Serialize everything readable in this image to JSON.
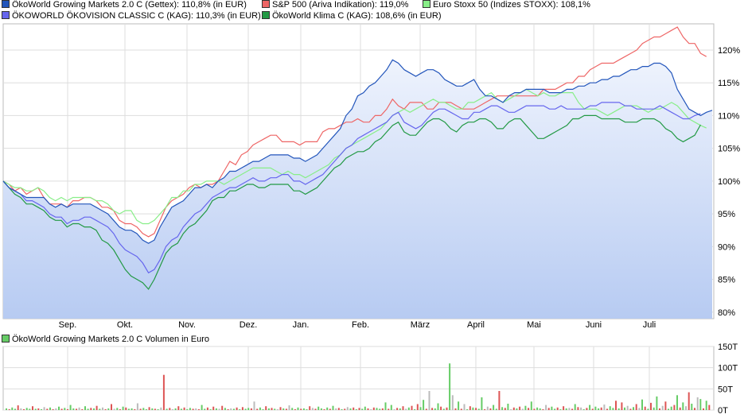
{
  "legend": [
    {
      "label": "ÖkoWorld Growing Markets 2.0 C (Gettex): 110,8% (in EUR)",
      "color": "#2255bb"
    },
    {
      "label": "S&P 500 (Ariva Indikation): 119,0%",
      "color": "#ee6666"
    },
    {
      "label": "Euro Stoxx 50 (Indizes STOXX): 108,1%",
      "color": "#88ee88"
    },
    {
      "label": "ÖKOWORLD ÖKOVISION CLASSIC C (KAG): 110,3% (in EUR)",
      "color": "#6666ee"
    },
    {
      "label": "ÖkoWorld Klima C (KAG): 108,6% (in EUR)",
      "color": "#229944"
    }
  ],
  "volume_legend": {
    "label": "ÖkoWorld Growing Markets 2.0 C Volumen in Euro",
    "color": "#66cc66"
  },
  "chart_data": [
    {
      "type": "line",
      "x_ticks": [
        "Sep.",
        "Okt.",
        "Nov.",
        "Dez.",
        "Jan.",
        "Feb.",
        "März",
        "April",
        "Mai",
        "Juni",
        "Juli"
      ],
      "y_ticks": [
        "80%",
        "85%",
        "90%",
        "95%",
        "100%",
        "105%",
        "110%",
        "115%",
        "120%"
      ],
      "ylim": [
        79,
        124
      ],
      "grid": true,
      "series": [
        {
          "name": "S&P 500 (Ariva Indikation)",
          "color": "#ee6666",
          "values": [
            100,
            99.5,
            98.5,
            99,
            98,
            98.5,
            99,
            97.5,
            96.5,
            96.5,
            96.5,
            96,
            97,
            97,
            97.5,
            97.5,
            97,
            96,
            96,
            95.5,
            94,
            93.5,
            93.5,
            93,
            92,
            91.5,
            92,
            94,
            96,
            97,
            97.5,
            98,
            99,
            99.5,
            99,
            99.5,
            99.5,
            100,
            101.5,
            103,
            102.5,
            104,
            104.5,
            105.5,
            106,
            106.5,
            107,
            107,
            106,
            106,
            106,
            105.5,
            106,
            106,
            106,
            107.5,
            108,
            108,
            108.5,
            109,
            109,
            109.5,
            109,
            109,
            110,
            110,
            111,
            112.5,
            111.5,
            111,
            112,
            112,
            112,
            111,
            111,
            112,
            112,
            112,
            111.5,
            111,
            111,
            111,
            111.5,
            112,
            112.5,
            113,
            113,
            113,
            113,
            113,
            113,
            113,
            113,
            114,
            114,
            114,
            114.5,
            115,
            115,
            116,
            116,
            117,
            117.5,
            118,
            118,
            118,
            118.5,
            119,
            119.5,
            120,
            121,
            121.5,
            122,
            122,
            122.5,
            123,
            123.5,
            122,
            121,
            121,
            119.5,
            119
          ]
        },
        {
          "name": "Euro Stoxx 50 (Indizes STOXX)",
          "color": "#88ee88",
          "values": [
            100,
            99.5,
            99,
            99,
            98.5,
            98.5,
            99,
            98.5,
            97.5,
            97,
            97.5,
            97,
            97.5,
            97.5,
            97.5,
            97.5,
            97,
            97,
            96.5,
            95.5,
            95,
            95.5,
            95.5,
            94,
            93.5,
            93.5,
            94,
            95,
            96,
            97.5,
            97.5,
            98.5,
            98.5,
            99.5,
            99.5,
            100,
            100,
            100,
            99.5,
            100,
            100.5,
            101,
            101.5,
            102,
            102,
            102,
            102,
            101.5,
            101,
            101.5,
            101,
            101,
            100.5,
            101,
            101.5,
            102,
            102.5,
            103.5,
            104,
            105,
            105.5,
            106,
            106.5,
            107,
            107.5,
            108,
            109,
            110,
            110.5,
            111,
            110.5,
            111,
            111.5,
            112,
            112.5,
            112,
            112,
            111.5,
            111,
            111,
            112,
            112,
            112.5,
            113,
            113.5,
            112.5,
            112,
            112.5,
            113,
            113.5,
            114,
            113.5,
            113,
            113.5,
            113,
            113,
            113.5,
            113.5,
            113.5,
            112,
            111,
            111,
            111,
            110.5,
            110,
            110.5,
            111,
            111.5,
            111.5,
            111.5,
            111,
            110.5,
            111,
            111,
            111.5,
            112,
            111.5,
            110.5,
            109.5,
            109,
            108.5,
            108.1
          ]
        },
        {
          "name": "ÖKOWORLD ÖKOVISION CLASSIC C (KAG)",
          "color": "#6666ee",
          "values": [
            100,
            99,
            98.5,
            98,
            97,
            97,
            96.5,
            96,
            95,
            94.5,
            94.5,
            93.5,
            94,
            94,
            94.5,
            94.5,
            94,
            93.5,
            93,
            92,
            90.5,
            89.5,
            89,
            88.5,
            87.5,
            86,
            86.5,
            88,
            90,
            91,
            91.5,
            93,
            94,
            95,
            95.5,
            96.5,
            97.5,
            98,
            98.5,
            99,
            99,
            99.5,
            100,
            100.5,
            100,
            100,
            100.5,
            100.5,
            101,
            101,
            100,
            100,
            99.5,
            100,
            100.5,
            101,
            102,
            103,
            104,
            105,
            105.5,
            106.5,
            107,
            107.5,
            108,
            108.5,
            109,
            110,
            110.5,
            109,
            108.5,
            108,
            108.5,
            109.5,
            110.5,
            111,
            111,
            110.5,
            110,
            109.5,
            109.5,
            110.5,
            110.5,
            111,
            111.5,
            111.5,
            111,
            110.5,
            110.5,
            111,
            111.5,
            111.5,
            111.5,
            111.5,
            111,
            111,
            111.5,
            111,
            111,
            111,
            111,
            111.5,
            111.5,
            112,
            112,
            112,
            112,
            111.5,
            111.5,
            111,
            111,
            111,
            111,
            111.5,
            111,
            110.5,
            110,
            109.5,
            109.5,
            110,
            110.3
          ]
        },
        {
          "name": "ÖkoWorld Klima C (KAG)",
          "color": "#229944",
          "values": [
            100,
            99,
            98,
            97.5,
            96.5,
            96.5,
            96,
            95.5,
            94.5,
            94,
            94,
            93,
            93.5,
            93.5,
            93,
            93,
            92.5,
            91,
            90.5,
            89.5,
            88,
            86.5,
            85.5,
            85,
            84.5,
            83.5,
            85,
            87,
            89,
            90,
            90.5,
            92,
            93,
            93.5,
            94.5,
            95.5,
            97,
            97.5,
            97.5,
            98.5,
            98.5,
            99,
            99.5,
            99.5,
            99,
            99,
            99.5,
            99.5,
            99.5,
            99.5,
            98.5,
            98.5,
            98,
            98.5,
            99,
            100,
            101,
            102,
            102.5,
            103.5,
            104,
            104.5,
            104.5,
            105,
            106,
            106.5,
            107.5,
            108.5,
            109,
            107.5,
            107,
            107,
            108,
            109,
            109.5,
            109.5,
            109,
            108,
            107.5,
            108.5,
            109,
            109,
            109.5,
            109.5,
            109,
            108,
            108,
            109,
            109.5,
            109.5,
            108.5,
            107.5,
            106.5,
            106.5,
            107,
            107.5,
            108,
            108.5,
            109.5,
            109.5,
            110,
            110,
            110,
            109.5,
            109.5,
            109.5,
            109.5,
            109,
            109,
            109,
            109.5,
            109.5,
            109.5,
            109,
            108,
            107.5,
            106.5,
            106,
            106.5,
            107,
            108.6
          ]
        },
        {
          "name": "ÖkoWorld Growing Markets 2.0 C (Gettex)",
          "color": "#2255bb",
          "values": [
            100,
            99,
            98.5,
            98,
            97.5,
            97.5,
            97.5,
            97.5,
            96.5,
            96,
            96.5,
            96,
            96.5,
            96.5,
            96.5,
            96.5,
            96,
            95.5,
            95,
            94,
            93,
            92.5,
            92.5,
            92,
            91,
            90.5,
            91,
            93,
            94.5,
            96,
            96.5,
            97,
            98,
            99,
            99,
            99.5,
            99,
            100,
            100.5,
            101.5,
            101.5,
            102,
            102.5,
            103,
            103,
            103.5,
            104,
            104,
            104,
            104,
            103.5,
            103.5,
            103,
            103.5,
            104,
            105,
            106,
            107,
            108,
            110,
            111,
            113,
            113.5,
            114.5,
            115,
            116,
            117,
            118.5,
            118,
            117,
            116.5,
            116,
            116.5,
            117,
            117,
            116.5,
            115.5,
            115,
            114.5,
            114.5,
            115,
            115.5,
            114,
            113,
            113,
            112.5,
            112,
            113,
            113.5,
            113.5,
            114,
            114,
            114,
            114,
            113.5,
            113.5,
            113.5,
            114,
            114,
            114.5,
            114.5,
            115,
            115,
            115.5,
            115.5,
            116,
            116,
            116.5,
            117,
            117,
            117.5,
            117.5,
            118,
            118,
            117.5,
            116.5,
            114,
            112.5,
            111,
            110.5,
            110,
            110.5,
            110.8
          ]
        }
      ]
    },
    {
      "type": "bar",
      "y_ticks": [
        "0T",
        "50T",
        "100T",
        "150T"
      ],
      "ylim": [
        0,
        150
      ],
      "values": [
        4,
        2,
        6,
        3,
        11,
        4,
        2,
        5,
        3,
        9,
        3,
        4,
        2,
        7,
        3,
        6,
        2,
        4,
        8,
        3,
        5,
        2,
        12,
        4,
        3,
        6,
        2,
        9,
        3,
        5,
        4,
        10,
        3,
        6,
        2,
        4,
        14,
        3,
        5,
        2,
        8,
        6,
        3,
        4,
        2,
        16,
        3,
        5,
        2,
        7,
        4,
        3,
        2,
        6,
        83,
        3,
        5,
        2,
        4,
        9,
        3,
        6,
        2,
        5,
        3,
        4,
        2,
        12,
        3,
        6,
        2,
        8,
        4,
        3,
        10,
        5,
        2,
        4,
        3,
        6,
        2,
        7,
        3,
        5,
        4,
        20,
        3,
        6,
        2,
        9,
        4,
        5,
        3,
        2,
        7,
        4,
        3,
        11,
        5,
        2,
        6,
        3,
        4,
        2,
        9,
        5,
        3,
        8,
        4,
        2,
        6,
        3,
        10,
        4,
        5,
        2,
        3,
        7,
        4,
        6,
        2,
        5,
        3,
        8,
        4,
        2,
        6,
        5,
        3,
        4,
        18,
        3,
        12,
        2,
        5,
        4,
        9,
        3,
        6,
        10,
        2,
        14,
        7,
        24,
        3,
        45,
        5,
        4,
        16,
        8,
        3,
        6,
        110,
        35,
        4,
        20,
        3,
        14,
        2,
        9,
        6,
        5,
        3,
        30,
        2,
        8,
        4,
        12,
        3,
        45,
        7,
        5,
        15,
        2,
        6,
        4,
        8,
        3,
        10,
        5,
        20,
        3,
        6,
        4,
        2,
        12,
        5,
        8,
        3,
        6,
        2,
        9,
        4,
        5,
        3,
        14,
        7,
        6,
        2,
        5,
        12,
        3,
        8,
        4,
        6,
        13,
        3,
        9,
        5,
        22,
        4,
        18,
        6,
        10,
        3,
        7,
        14,
        5,
        25,
        8,
        3,
        17,
        6,
        32,
        4,
        10,
        20,
        3,
        8,
        12,
        35,
        6,
        18,
        9,
        42,
        15,
        5,
        30,
        26,
        4,
        22,
        12
      ]
    }
  ]
}
